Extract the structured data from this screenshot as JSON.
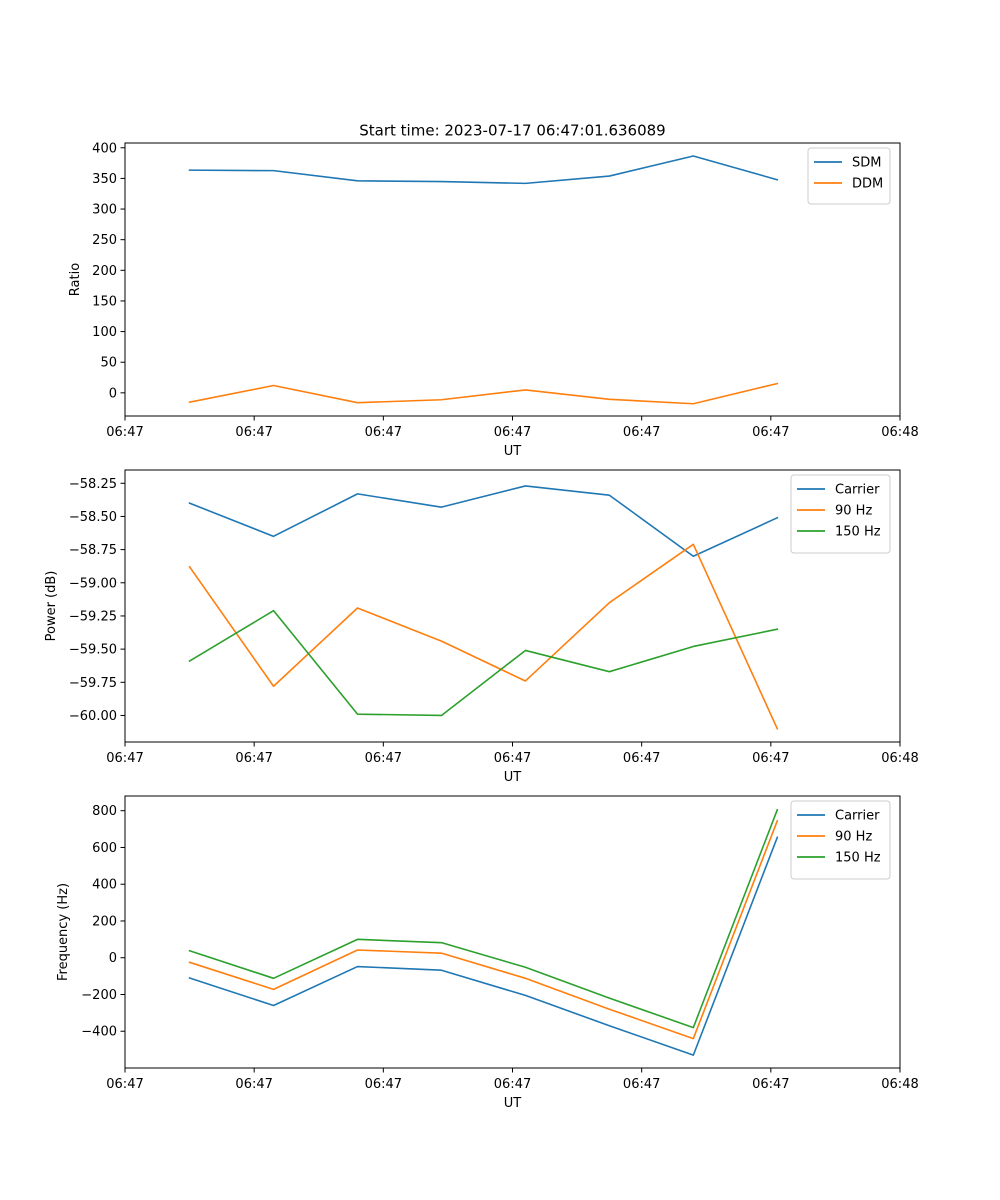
{
  "figure_title": "Start time: 2023-07-17 06:47:01.636089",
  "colors": {
    "blue": "#1f77b4",
    "orange": "#ff7f0e",
    "green": "#2ca02c"
  },
  "chart_data": [
    {
      "type": "line",
      "xlabel": "UT",
      "ylabel": "Ratio",
      "x_tick_labels": [
        "06:47",
        "06:47",
        "06:47",
        "06:47",
        "06:47",
        "06:47",
        "06:48"
      ],
      "xlim": [
        0,
        6
      ],
      "x": [
        0.5,
        1.15,
        1.8,
        2.45,
        3.1,
        3.75,
        4.4,
        5.05
      ],
      "ylim": [
        -37.8,
        407.8
      ],
      "yticks": [
        0,
        50,
        100,
        150,
        200,
        250,
        300,
        350,
        400
      ],
      "y_tick_labels": [
        "0",
        "50",
        "100",
        "150",
        "200",
        "250",
        "300",
        "350",
        "400"
      ],
      "legend": "top-right",
      "series": [
        {
          "name": "SDM",
          "color": "#1f77b4",
          "values": [
            363.5,
            362.7,
            346.1,
            344.8,
            341.9,
            353.8,
            386.6,
            347.8
          ]
        },
        {
          "name": "DDM",
          "color": "#ff7f0e",
          "values": [
            -15.3,
            12.0,
            -16.1,
            -11.3,
            4.8,
            -10.5,
            -17.8,
            15.2
          ]
        }
      ]
    },
    {
      "type": "line",
      "xlabel": "UT",
      "ylabel": "Power (dB)",
      "x_tick_labels": [
        "06:47",
        "06:47",
        "06:47",
        "06:47",
        "06:47",
        "06:47",
        "06:48"
      ],
      "xlim": [
        0,
        6
      ],
      "x": [
        0.5,
        1.15,
        1.8,
        2.45,
        3.1,
        3.75,
        4.4,
        5.05
      ],
      "ylim": [
        -60.2,
        -58.15
      ],
      "yticks": [
        -60.0,
        -59.75,
        -59.5,
        -59.25,
        -59.0,
        -58.75,
        -58.5,
        -58.25
      ],
      "y_tick_labels": [
        "−60.00",
        "−59.75",
        "−59.50",
        "−59.25",
        "−59.00",
        "−58.75",
        "−58.50",
        "−58.25"
      ],
      "legend": "top-right",
      "series": [
        {
          "name": "Carrier",
          "color": "#1f77b4",
          "values": [
            -58.4,
            -58.65,
            -58.33,
            -58.43,
            -58.27,
            -58.34,
            -58.8,
            -58.51
          ]
        },
        {
          "name": "90 Hz",
          "color": "#ff7f0e",
          "values": [
            -58.88,
            -59.78,
            -59.19,
            -59.44,
            -59.74,
            -59.15,
            -58.71,
            -60.1
          ]
        },
        {
          "name": "150 Hz",
          "color": "#2ca02c",
          "values": [
            -59.59,
            -59.21,
            -59.99,
            -60.0,
            -59.51,
            -59.67,
            -59.48,
            -59.35
          ]
        }
      ]
    },
    {
      "type": "line",
      "xlabel": "UT",
      "ylabel": "Frequency (Hz)",
      "x_tick_labels": [
        "06:47",
        "06:47",
        "06:47",
        "06:47",
        "06:47",
        "06:47",
        "06:48"
      ],
      "xlim": [
        0,
        6
      ],
      "x": [
        0.5,
        1.15,
        1.8,
        2.45,
        3.1,
        3.75,
        4.4,
        5.05
      ],
      "ylim": [
        -600,
        880
      ],
      "yticks": [
        -400,
        -200,
        0,
        200,
        400,
        600,
        800
      ],
      "y_tick_labels": [
        "−400",
        "−200",
        "0",
        "200",
        "400",
        "600",
        "800"
      ],
      "legend": "top-right",
      "series": [
        {
          "name": "Carrier",
          "color": "#1f77b4",
          "values": [
            -110,
            -260,
            -48,
            -68,
            -205,
            -370,
            -530,
            655
          ]
        },
        {
          "name": "90 Hz",
          "color": "#ff7f0e",
          "values": [
            -25,
            -172,
            42,
            25,
            -112,
            -280,
            -440,
            745
          ]
        },
        {
          "name": "150 Hz",
          "color": "#2ca02c",
          "values": [
            38,
            -112,
            100,
            82,
            -52,
            -220,
            -380,
            805
          ]
        }
      ]
    }
  ]
}
